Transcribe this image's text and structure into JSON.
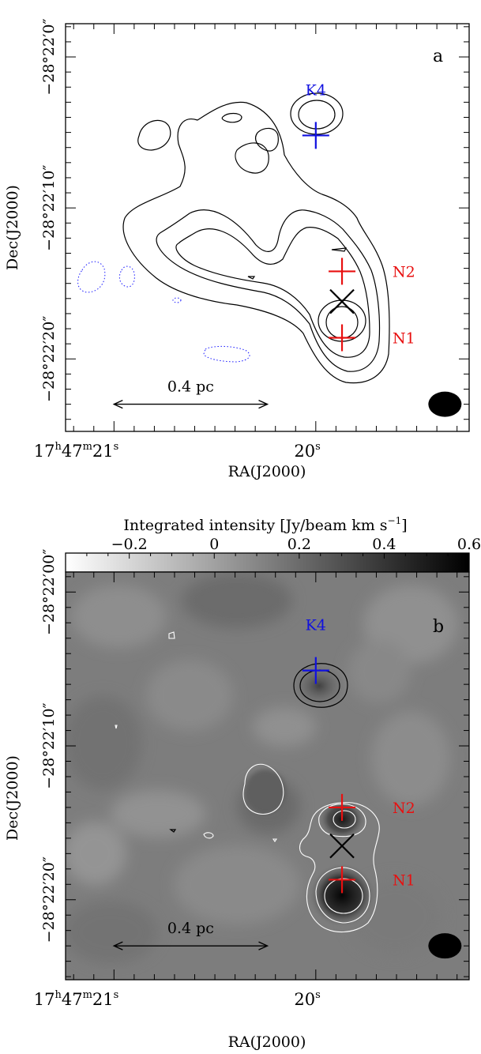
{
  "chart_data": [
    {
      "type": "contour",
      "panel_label": "a",
      "xlabel": "RA(J2000)",
      "ylabel": "Dec(J2000)",
      "x_ticks": [
        {
          "value": 21.0,
          "h": "17",
          "m": "47",
          "s": "21"
        },
        {
          "value": 20.0,
          "s": "20"
        }
      ],
      "y_ticks": [
        {
          "value": 0,
          "label": "−28°22′0″"
        },
        {
          "value": 10,
          "label": "−28°22′10″"
        },
        {
          "value": 20,
          "label": "−28°22′20″"
        }
      ],
      "xlim": [
        21.24,
        19.24
      ],
      "ylim": [
        -2.2,
        24.8
      ],
      "markers": [
        {
          "name": "K4",
          "ra": 20.0,
          "dec": 5.2,
          "symbol": "plus",
          "color": "#1010e0"
        },
        {
          "name": "N2",
          "ra": 19.87,
          "dec": 14.2,
          "symbol": "plus",
          "color": "#e81010"
        },
        {
          "name": "N1",
          "ra": 19.87,
          "dec": 18.6,
          "symbol": "plus",
          "color": "#e81010"
        },
        {
          "name": "",
          "ra": 19.87,
          "dec": 16.2,
          "symbol": "cross",
          "color": "#000000"
        }
      ],
      "scalebar": {
        "label": "0.4 pc",
        "ra_start": 21.0,
        "ra_end": 20.24,
        "dec": 23.0
      },
      "beam": {
        "ra": 19.36,
        "dec": 23.0
      },
      "contour_colors": {
        "positive": "#000000",
        "negative": "#1a1aff"
      }
    },
    {
      "type": "heatmap",
      "panel_label": "b",
      "xlabel": "RA(J2000)",
      "ylabel": "Dec(J2000)",
      "colorbar": {
        "label": "Integrated intensity [Jy/beam km s",
        "label_sup": "−1",
        "label_end": "]",
        "range": [
          -0.35,
          0.6
        ],
        "ticks": [
          "−0.2",
          "0",
          "0.2",
          "0.4",
          "0.6"
        ],
        "tick_values": [
          -0.2,
          0,
          0.2,
          0.4,
          0.6
        ]
      },
      "x_ticks": [
        {
          "value": 21.0,
          "h": "17",
          "m": "47",
          "s": "21"
        },
        {
          "value": 20.0,
          "s": "20"
        }
      ],
      "y_ticks": [
        {
          "value": 0,
          "label": "−28°22′00″"
        },
        {
          "value": 10,
          "label": "−28°22′10″"
        },
        {
          "value": 20,
          "label": "−28°22′20″"
        }
      ],
      "xlim": [
        21.24,
        19.24
      ],
      "ylim": [
        -1.3,
        25.2
      ],
      "markers": [
        {
          "name": "K4",
          "ra": 20.0,
          "dec": 5.1,
          "symbol": "plus",
          "color": "#1010e0"
        },
        {
          "name": "N2",
          "ra": 19.87,
          "dec": 14.0,
          "symbol": "plus",
          "color": "#e81010"
        },
        {
          "name": "N1",
          "ra": 19.87,
          "dec": 18.7,
          "symbol": "plus",
          "color": "#e81010"
        },
        {
          "name": "",
          "ra": 19.87,
          "dec": 16.5,
          "symbol": "cross",
          "color": "#000000"
        }
      ],
      "scalebar": {
        "label": "0.4 pc",
        "ra_start": 21.0,
        "ra_end": 20.24,
        "dec": 23.0
      },
      "beam": {
        "ra": 19.36,
        "dec": 23.0
      }
    }
  ]
}
